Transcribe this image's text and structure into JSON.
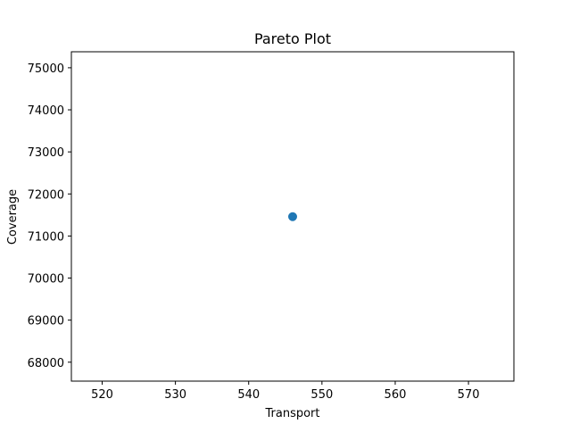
{
  "chart_data": {
    "type": "scatter",
    "title": "Pareto Plot",
    "xlabel": "Transport",
    "ylabel": "Coverage",
    "xlim": [
      515.8,
      576.2
    ],
    "ylim": [
      67550,
      75380
    ],
    "xticks": [
      520,
      530,
      540,
      550,
      560,
      570
    ],
    "yticks": [
      68000,
      69000,
      70000,
      71000,
      72000,
      73000,
      74000,
      75000
    ],
    "grid": false,
    "legend": "none",
    "series": [
      {
        "color": "#1f77b4",
        "points": [
          {
            "x": 546,
            "y": 71460
          }
        ]
      }
    ]
  }
}
